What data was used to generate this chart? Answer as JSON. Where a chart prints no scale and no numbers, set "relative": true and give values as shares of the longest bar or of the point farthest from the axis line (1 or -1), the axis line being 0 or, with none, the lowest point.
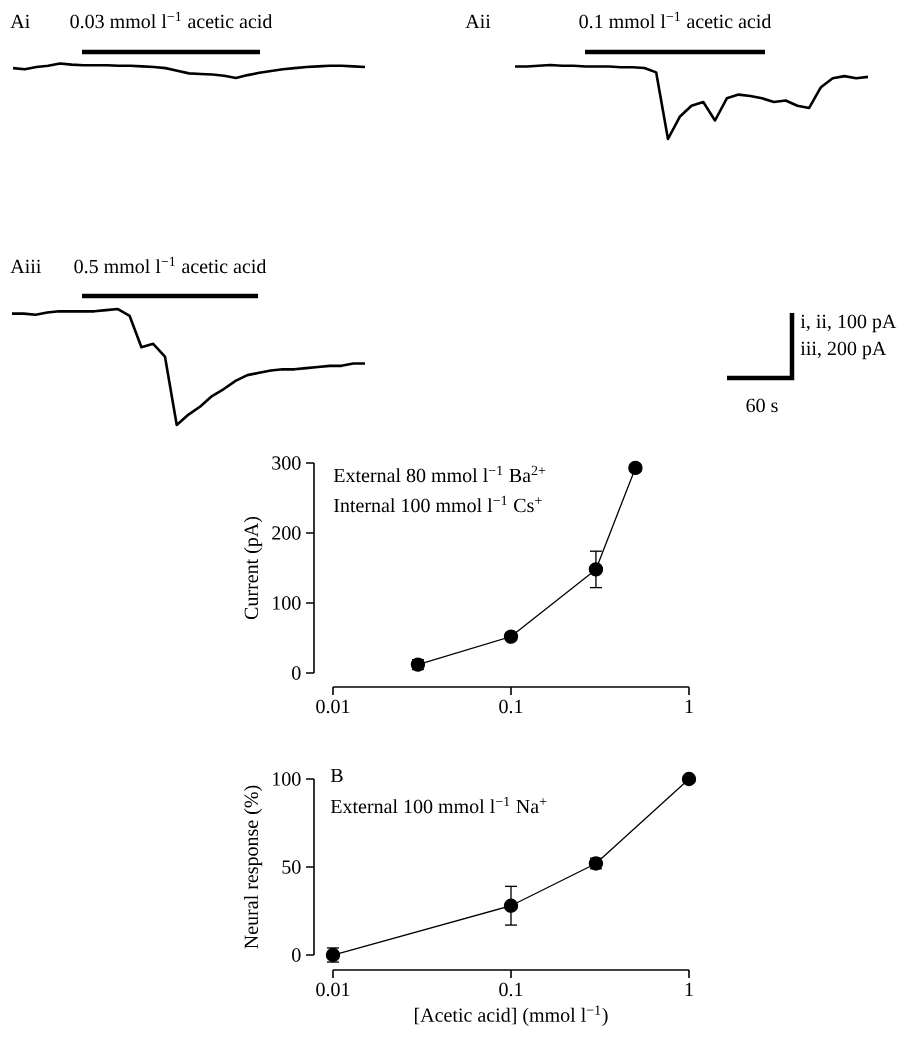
{
  "chart_data": [
    {
      "type": "line",
      "title": "Ai",
      "relative": true,
      "color": "#000000",
      "categories": [
        null,
        null,
        null,
        null,
        null,
        null,
        null,
        null,
        null,
        null,
        null,
        null,
        null,
        null,
        null,
        null,
        null,
        null,
        null,
        null,
        null,
        null,
        null,
        null,
        null,
        null,
        null,
        null,
        null,
        null,
        null
      ],
      "values": [
        0.68,
        0.6,
        0.76,
        0.84,
        1.0,
        0.92,
        0.88,
        0.88,
        0.88,
        0.84,
        0.84,
        0.8,
        0.76,
        0.68,
        0.5,
        0.32,
        0.28,
        0.24,
        0.16,
        0.0,
        0.2,
        0.36,
        0.48,
        0.6,
        0.68,
        0.76,
        0.8,
        0.84,
        0.84,
        0.8,
        0.76
      ],
      "annotations": [
        "0.03 mmol l$^{−1}$ acetic acid"
      ]
    },
    {
      "type": "line",
      "title": "Aii",
      "relative": true,
      "color": "#000000",
      "categories": [
        null,
        null,
        null,
        null,
        null,
        null,
        null,
        null,
        null,
        null,
        null,
        null,
        null,
        null,
        null,
        null,
        null,
        null,
        null,
        null,
        null,
        null,
        null,
        null,
        null,
        null,
        null,
        null,
        null,
        null,
        null
      ],
      "values": [
        0.98,
        0.98,
        0.99,
        1.0,
        0.99,
        0.99,
        0.98,
        0.98,
        0.98,
        0.97,
        0.97,
        0.96,
        0.9,
        0.0,
        0.3,
        0.45,
        0.5,
        0.25,
        0.55,
        0.6,
        0.58,
        0.55,
        0.5,
        0.52,
        0.45,
        0.42,
        0.7,
        0.82,
        0.85,
        0.82,
        0.84
      ],
      "annotations": [
        "0.1 mmol l$^{−1}$ acetic acid"
      ]
    },
    {
      "type": "line",
      "title": "Aiii",
      "relative": true,
      "color": "#000000",
      "categories": [
        null,
        null,
        null,
        null,
        null,
        null,
        null,
        null,
        null,
        null,
        null,
        null,
        null,
        null,
        null,
        null,
        null,
        null,
        null,
        null,
        null,
        null,
        null,
        null,
        null,
        null,
        null,
        null,
        null,
        null,
        null
      ],
      "values": [
        0.96,
        0.96,
        0.95,
        0.97,
        0.98,
        0.98,
        0.98,
        0.98,
        0.99,
        1.0,
        0.94,
        0.67,
        0.7,
        0.59,
        0.0,
        0.09,
        0.16,
        0.25,
        0.31,
        0.38,
        0.43,
        0.45,
        0.47,
        0.48,
        0.48,
        0.49,
        0.5,
        0.51,
        0.51,
        0.53,
        0.53
      ],
      "annotations": [
        "0.5 mmol l$^{−1}$ acetic acid",
        "i, ii, 100 pA",
        "iii, 200 pA",
        "60 s"
      ]
    },
    {
      "type": "line",
      "color": "#000000",
      "marker": "circle",
      "log": "x",
      "ylabel": "Current (pA)",
      "xlim": [
        0.01,
        1
      ],
      "xticks": [
        0.01,
        0.1,
        1
      ],
      "ylim": [
        0,
        300
      ],
      "yticks": [
        0,
        100,
        200,
        300
      ],
      "x": [
        0.03,
        0.1,
        0.3,
        0.5
      ],
      "values": [
        12,
        52,
        148,
        293
      ],
      "errors": [
        7,
        5,
        26,
        null
      ],
      "annotations": [
        "External 80 mmol l$^{−1}$ Ba$^{2+}$",
        "Internal 100 mmol l$^{−1}$ Cs$^{+}$"
      ]
    },
    {
      "type": "line",
      "title": "B",
      "color": "#000000",
      "marker": "circle",
      "log": "x",
      "ylabel": "Neural response (%)",
      "xlabel": "[Acetic acid] (mmol l$^{−1}$)",
      "xlim": [
        0.01,
        1
      ],
      "xticks": [
        0.01,
        0.1,
        1
      ],
      "ylim": [
        0,
        100
      ],
      "yticks": [
        0,
        50,
        100
      ],
      "x": [
        0.01,
        0.1,
        0.3,
        1
      ],
      "values": [
        0,
        28,
        52,
        100
      ],
      "errors": [
        4,
        11,
        3,
        null
      ],
      "annotations": [
        "External 100 mmol l$^{−1}$ Na$^{+}$"
      ]
    }
  ]
}
